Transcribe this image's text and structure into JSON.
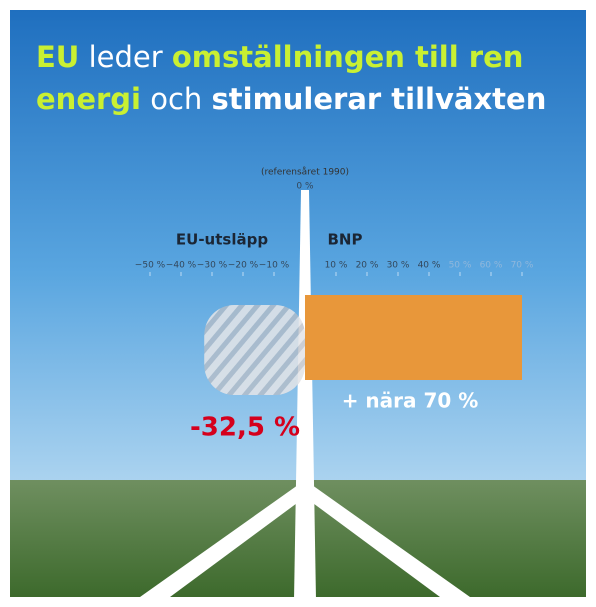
{
  "chart_data": {
    "type": "bar",
    "orientation": "horizontal",
    "title": [
      "EU",
      "leder",
      "omställningen till ren",
      "energi",
      "och",
      "stimulerar tillväxten"
    ],
    "annotation": "(referensåret 1990)",
    "categories": [
      "EU-utsläpp",
      "BNP"
    ],
    "values": [
      -32.5,
      70
    ],
    "value_labels": [
      "-32,5 %",
      "+ nära 70 %"
    ],
    "colors": [
      "#b9bec6",
      "#e8973a"
    ],
    "label_colors": [
      "#d5001c",
      "#ffffff"
    ],
    "xlim": [
      -50,
      70
    ],
    "xticks": [
      {
        "value": -50,
        "label": "−50 %"
      },
      {
        "value": -40,
        "label": "−40 %"
      },
      {
        "value": -30,
        "label": "−30 %"
      },
      {
        "value": -20,
        "label": "−20 %"
      },
      {
        "value": -10,
        "label": "−10 %"
      },
      {
        "value": 0,
        "label": "0 %"
      },
      {
        "value": 10,
        "label": "10 %"
      },
      {
        "value": 20,
        "label": "20 %"
      },
      {
        "value": 30,
        "label": "30 %"
      },
      {
        "value": 40,
        "label": "40 %"
      },
      {
        "value": 50,
        "label": "50 %"
      },
      {
        "value": 60,
        "label": "60 %"
      },
      {
        "value": 70,
        "label": "70 %"
      }
    ],
    "grid": false
  }
}
